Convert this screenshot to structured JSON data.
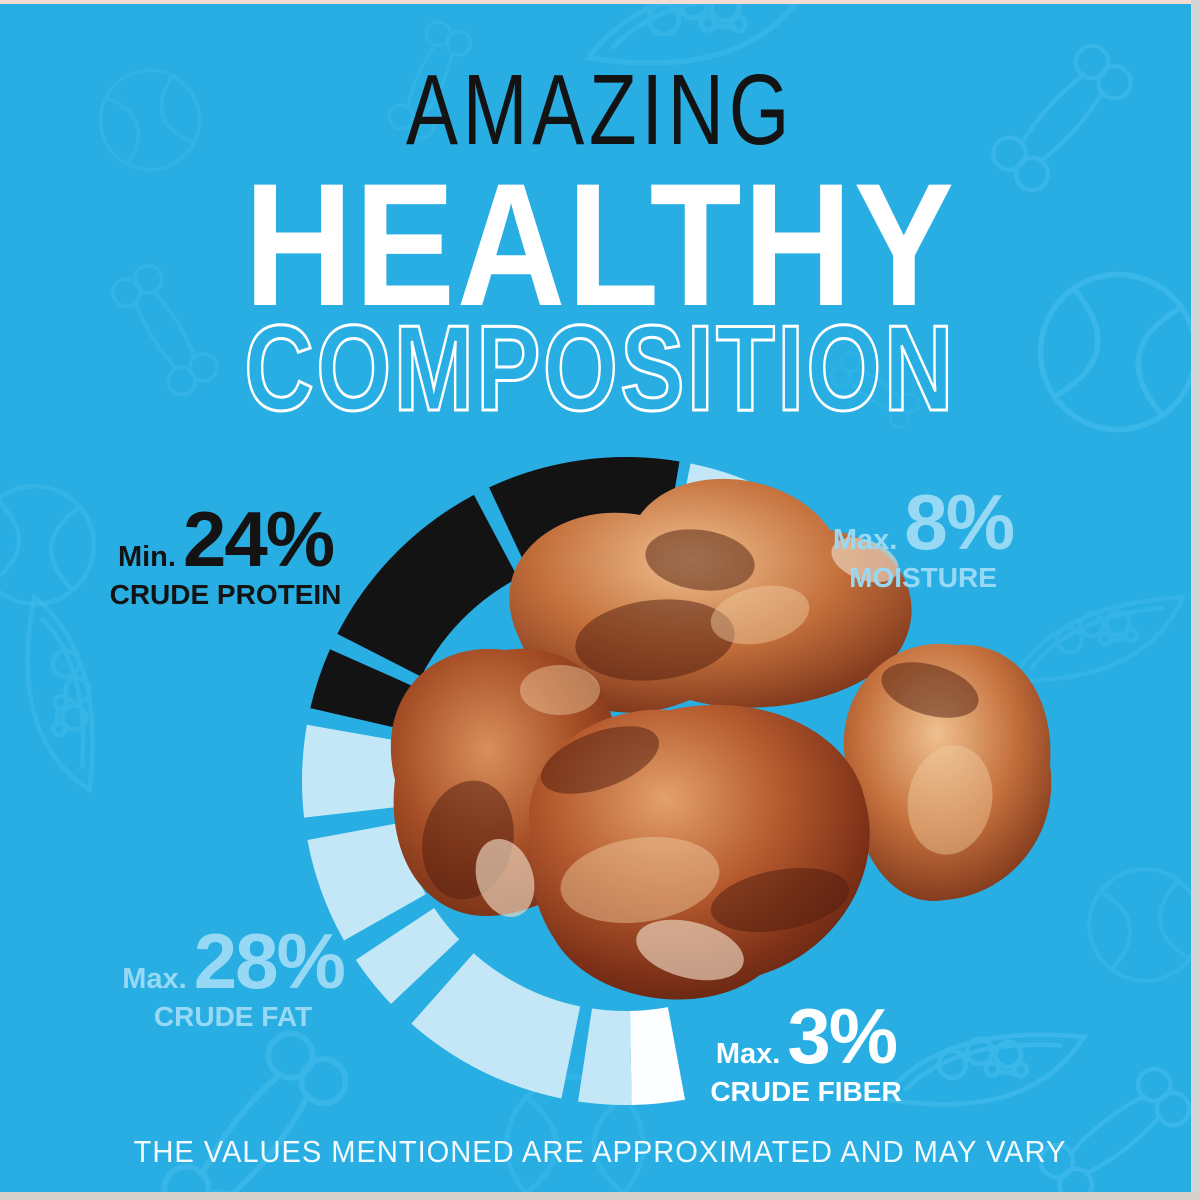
{
  "title": {
    "line1": "AMAZING",
    "line2": "HEALTHY",
    "line3": "COMPOSITION"
  },
  "labels": {
    "protein": {
      "prefix": "Min.",
      "value": "24%",
      "name": "CRUDE PROTEIN"
    },
    "moisture": {
      "prefix": "Max.",
      "value": "8%",
      "name": "MOISTURE"
    },
    "fat": {
      "prefix": "Max.",
      "value": "28%",
      "name": "CRUDE FAT"
    },
    "fiber": {
      "prefix": "Max.",
      "value": "3%",
      "name": "CRUDE FIBER"
    }
  },
  "disclaimer": "THE VALUES MENTIONED ARE APPROXIMATED AND MAY VARY",
  "colors": {
    "background": "#29AEE3",
    "pattern_stroke": "#54C6F0",
    "ink": "#131313",
    "label_blue": "#97D9F4",
    "segment_blue": "#C3E7F7",
    "segment_white": "#FDFEFF",
    "frame_top": "#F2DCD4",
    "frame_right": "#D5D5D5",
    "frame_bottom": "#D5CFC9"
  },
  "chart_data": {
    "type": "pie",
    "subtype": "segmented-donut-open-right",
    "title": "AMAZING HEALTHY COMPOSITION",
    "slices": [
      {
        "label": "CRUDE PROTEIN",
        "qualifier": "Min.",
        "value_pct": 24,
        "color": "#131313"
      },
      {
        "label": "MOISTURE",
        "qualifier": "Max.",
        "value_pct": 8,
        "color": "#C3E7F7"
      },
      {
        "label": "CRUDE FAT",
        "qualifier": "Max.",
        "value_pct": 28,
        "color": "#C3E7F7"
      },
      {
        "label": "CRUDE FIBER",
        "qualifier": "Max.",
        "value_pct": 3,
        "color": "#FDFEFF"
      }
    ],
    "note": "ring arc lengths proportional to percentages; right side of ring left open behind product photo",
    "ring": {
      "center": [
        626,
        781
      ],
      "outer_radius": 324,
      "inner_radius": 230,
      "segments": [
        {
          "part": "crude-protein",
          "start": 283,
          "end": 294,
          "color": "#131313"
        },
        {
          "part": "crude-protein",
          "start": 297,
          "end": 332,
          "color": "#131313"
        },
        {
          "part": "crude-protein",
          "start": 335,
          "end": 369.5,
          "color": "#131313"
        },
        {
          "part": "moisture",
          "start": 11.5,
          "end": 39,
          "color": "#C3E7F7"
        },
        {
          "part": "crude-fiber",
          "start": 169.5,
          "end": 179,
          "color": "#FDFEFF"
        },
        {
          "part": "crude-fat",
          "start": 179,
          "end": 188.5,
          "color": "#C3E7F7"
        },
        {
          "part": "crude-fat",
          "start": 191.5,
          "end": 221.5,
          "color": "#C3E7F7"
        },
        {
          "part": "crude-fat",
          "start": 226.5,
          "end": 236.5,
          "color": "#C3E7F7"
        },
        {
          "part": "crude-fat",
          "start": 240.5,
          "end": 259.5,
          "color": "#C3E7F7"
        },
        {
          "part": "crude-fat",
          "start": 263.5,
          "end": 280,
          "color": "#C3E7F7"
        }
      ]
    }
  }
}
